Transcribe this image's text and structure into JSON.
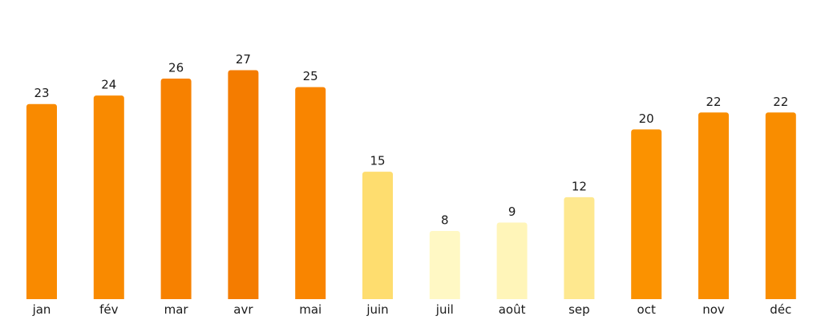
{
  "chart_data": {
    "type": "bar",
    "title": "",
    "xlabel": "",
    "ylabel": "",
    "categories": [
      "jan",
      "fév",
      "mar",
      "avr",
      "mai",
      "juin",
      "juil",
      "août",
      "sep",
      "oct",
      "nov",
      "déc"
    ],
    "values": [
      23,
      24,
      26,
      27,
      25,
      15,
      8,
      9,
      12,
      20,
      22,
      22
    ],
    "ylim": [
      0,
      27
    ],
    "grid": false,
    "legend": "none",
    "data_labels": true,
    "bar_colors": [
      "#f98a00",
      "#f98a00",
      "#f78100",
      "#f47c00",
      "#f98500",
      "#fedd6f",
      "#fff8c4",
      "#fff5b9",
      "#fee88f",
      "#fb9200",
      "#f98d00",
      "#f98d00"
    ]
  }
}
